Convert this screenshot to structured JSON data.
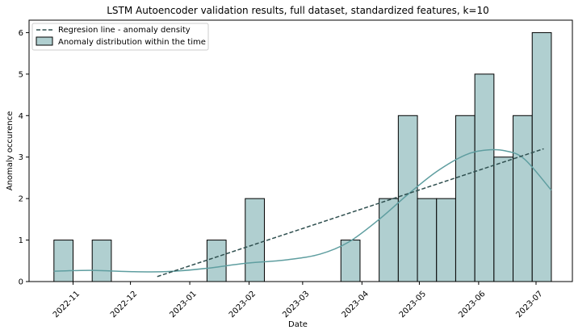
{
  "chart_data": {
    "type": "bar",
    "title": "LSTM Autoencoder validation results, full dataset, standardized features, k=10",
    "xlabel": "Date",
    "ylabel": "Anomaly occurence",
    "x_ticks": [
      "2022-11",
      "2022-12",
      "2023-01",
      "2023-02",
      "2023-03",
      "2023-04",
      "2023-05",
      "2023-06",
      "2023-07"
    ],
    "y_ticks": [
      0,
      1,
      2,
      3,
      4,
      5,
      6
    ],
    "xlim": [
      "2022-10-09",
      "2023-07-20"
    ],
    "ylim": [
      0,
      6.3
    ],
    "grid": false,
    "legend_position": "top-left",
    "bins": [
      {
        "start": "2022-10-22",
        "end": "2022-11-01",
        "count": 1
      },
      {
        "start": "2022-11-01",
        "end": "2022-11-11",
        "count": 0
      },
      {
        "start": "2022-11-11",
        "end": "2022-11-21",
        "count": 1
      },
      {
        "start": "2022-11-21",
        "end": "2022-12-01",
        "count": 0
      },
      {
        "start": "2022-12-01",
        "end": "2022-12-11",
        "count": 0
      },
      {
        "start": "2022-12-11",
        "end": "2022-12-21",
        "count": 0
      },
      {
        "start": "2022-12-21",
        "end": "2022-12-31",
        "count": 0
      },
      {
        "start": "2022-12-31",
        "end": "2023-01-10",
        "count": 0
      },
      {
        "start": "2023-01-10",
        "end": "2023-01-20",
        "count": 1
      },
      {
        "start": "2023-01-20",
        "end": "2023-01-30",
        "count": 0
      },
      {
        "start": "2023-01-30",
        "end": "2023-02-09",
        "count": 2
      },
      {
        "start": "2023-02-09",
        "end": "2023-02-19",
        "count": 0
      },
      {
        "start": "2023-02-19",
        "end": "2023-03-01",
        "count": 0
      },
      {
        "start": "2023-03-01",
        "end": "2023-03-11",
        "count": 0
      },
      {
        "start": "2023-03-11",
        "end": "2023-03-21",
        "count": 0
      },
      {
        "start": "2023-03-21",
        "end": "2023-03-31",
        "count": 1
      },
      {
        "start": "2023-03-31",
        "end": "2023-04-10",
        "count": 0
      },
      {
        "start": "2023-04-10",
        "end": "2023-04-20",
        "count": 2
      },
      {
        "start": "2023-04-20",
        "end": "2023-04-30",
        "count": 4
      },
      {
        "start": "2023-04-30",
        "end": "2023-05-10",
        "count": 2
      },
      {
        "start": "2023-05-10",
        "end": "2023-05-20",
        "count": 2
      },
      {
        "start": "2023-05-20",
        "end": "2023-05-30",
        "count": 4
      },
      {
        "start": "2023-05-30",
        "end": "2023-06-09",
        "count": 5
      },
      {
        "start": "2023-06-09",
        "end": "2023-06-19",
        "count": 3
      },
      {
        "start": "2023-06-19",
        "end": "2023-06-29",
        "count": 4
      },
      {
        "start": "2023-06-29",
        "end": "2023-07-09",
        "count": 6
      }
    ],
    "series": [
      {
        "name": "Regresion line - anomaly density",
        "type": "line",
        "style": "dashed",
        "x": [
          "2022-12-15",
          "2023-07-05"
        ],
        "y": [
          0.12,
          3.2
        ]
      },
      {
        "name": "",
        "type": "kde",
        "x": [
          "2022-10-22",
          "2022-11-10",
          "2022-11-30",
          "2022-12-20",
          "2023-01-10",
          "2023-01-30",
          "2023-02-20",
          "2023-03-10",
          "2023-03-25",
          "2023-04-10",
          "2023-04-25",
          "2023-05-10",
          "2023-05-25",
          "2023-06-05",
          "2023-06-15",
          "2023-06-25",
          "2023-07-09"
        ],
        "y": [
          0.25,
          0.27,
          0.24,
          0.24,
          0.32,
          0.44,
          0.52,
          0.66,
          0.95,
          1.5,
          2.1,
          2.65,
          3.05,
          3.17,
          3.15,
          2.95,
          2.2
        ]
      }
    ],
    "legend": [
      {
        "label": "Regresion line - anomaly density",
        "kind": "dashed-line"
      },
      {
        "label": "Anomaly distribution within the time",
        "kind": "patch"
      }
    ],
    "colors": {
      "bar_fill": "#b0cfd0",
      "bar_edge": "#000000",
      "kde_line": "#5f9ea0",
      "regression_line": "#2f4f4f"
    }
  }
}
